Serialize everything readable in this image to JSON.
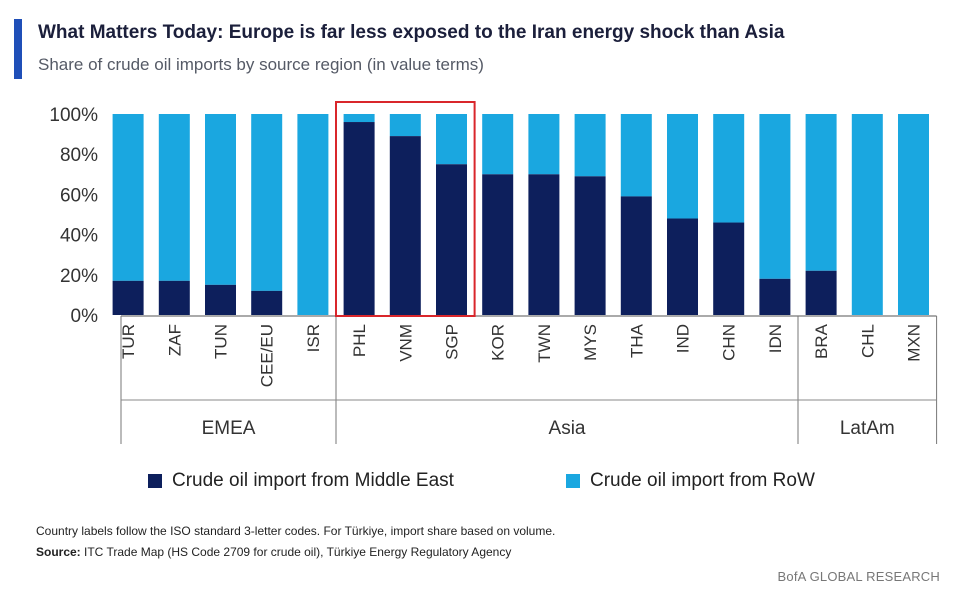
{
  "header": {
    "title": "What Matters Today: Europe is far less exposed to the Iran energy shock than Asia",
    "subtitle": "Share of crude oil imports by source region (in value terms)"
  },
  "colors": {
    "accent": "#1f4fb8",
    "middle_east": "#0d1f5c",
    "row": "#1aa7e0",
    "highlight_box": "#d9262b"
  },
  "chart_data": {
    "type": "bar",
    "stacked": true,
    "categories": [
      "TUR",
      "ZAF",
      "TUN",
      "CEE/EU",
      "ISR",
      "PHL",
      "VNM",
      "SGP",
      "KOR",
      "TWN",
      "MYS",
      "THA",
      "IND",
      "CHN",
      "IDN",
      "BRA",
      "CHL",
      "MXN"
    ],
    "groups": [
      {
        "name": "EMEA",
        "members": [
          "TUR",
          "ZAF",
          "TUN",
          "CEE/EU",
          "ISR"
        ]
      },
      {
        "name": "Asia",
        "members": [
          "PHL",
          "VNM",
          "SGP",
          "KOR",
          "TWN",
          "MYS",
          "THA",
          "IND",
          "CHN",
          "IDN"
        ]
      },
      {
        "name": "LatAm",
        "members": [
          "BRA",
          "CHL",
          "MXN"
        ]
      }
    ],
    "series": [
      {
        "name": "Crude oil import from Middle East",
        "values": [
          17,
          17,
          15,
          12,
          0,
          96,
          89,
          75,
          70,
          70,
          69,
          59,
          48,
          46,
          18,
          22,
          0,
          0
        ]
      },
      {
        "name": "Crude oil import from RoW",
        "values": [
          83,
          83,
          85,
          88,
          100,
          4,
          11,
          25,
          30,
          30,
          31,
          41,
          52,
          54,
          82,
          78,
          100,
          100
        ]
      }
    ],
    "y_ticks": [
      "0%",
      "20%",
      "40%",
      "60%",
      "80%",
      "100%"
    ],
    "ylim": [
      0,
      100
    ],
    "highlighted": [
      "PHL",
      "VNM",
      "SGP"
    ],
    "legend_position": "bottom"
  },
  "footer": {
    "note": "Country labels follow the ISO standard 3-letter codes. For Türkiye, import share based on volume.",
    "source_label": "Source:",
    "source_text": " ITC Trade Map (HS Code 2709 for crude oil), Türkiye Energy Regulatory Agency",
    "brand": "BofA GLOBAL RESEARCH"
  }
}
